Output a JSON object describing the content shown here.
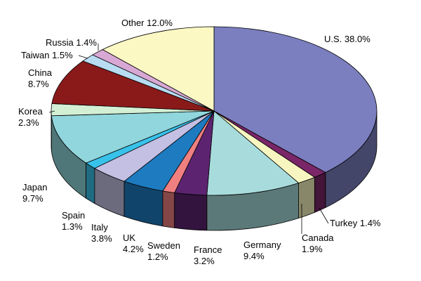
{
  "chart_data": {
    "type": "pie",
    "style": "3d",
    "title": "",
    "slices": [
      {
        "label": "U.S.",
        "value": 38.0,
        "text": "38.0%",
        "color": "#7b7fbf"
      },
      {
        "label": "Turkey",
        "value": 1.4,
        "text": "1.4%",
        "color": "#7a2668"
      },
      {
        "label": "Canada",
        "value": 1.9,
        "text": "1.9%",
        "color": "#f8f6c0"
      },
      {
        "label": "Germany",
        "value": 9.4,
        "text": "9.4%",
        "color": "#a8dcdc"
      },
      {
        "label": "France",
        "value": 3.2,
        "text": "3.2%",
        "color": "#5c2470"
      },
      {
        "label": "Sweden",
        "value": 1.2,
        "text": "1.2%",
        "color": "#f08080"
      },
      {
        "label": "UK",
        "value": 4.2,
        "text": "4.2%",
        "color": "#1e7bc0"
      },
      {
        "label": "Italy",
        "value": 3.8,
        "text": "3.8%",
        "color": "#c4c0e4"
      },
      {
        "label": "Spain",
        "value": 1.3,
        "text": "1.3%",
        "color": "#38c2ea"
      },
      {
        "label": "Japan",
        "value": 9.7,
        "text": "9.7%",
        "color": "#90d6dc"
      },
      {
        "label": "Korea",
        "value": 2.3,
        "text": "2.3%",
        "color": "#d4f0d4"
      },
      {
        "label": "China",
        "value": 8.7,
        "text": "8.7%",
        "color": "#8a1a1a"
      },
      {
        "label": "Taiwan",
        "value": 1.5,
        "text": "1.5%",
        "color": "#b8dcf2"
      },
      {
        "label": "Russia",
        "value": 1.4,
        "text": "1.4%",
        "color": "#d8a8d4"
      },
      {
        "label": "Other",
        "value": 12.0,
        "text": "12.0%",
        "color": "#fbf8c4"
      }
    ]
  }
}
